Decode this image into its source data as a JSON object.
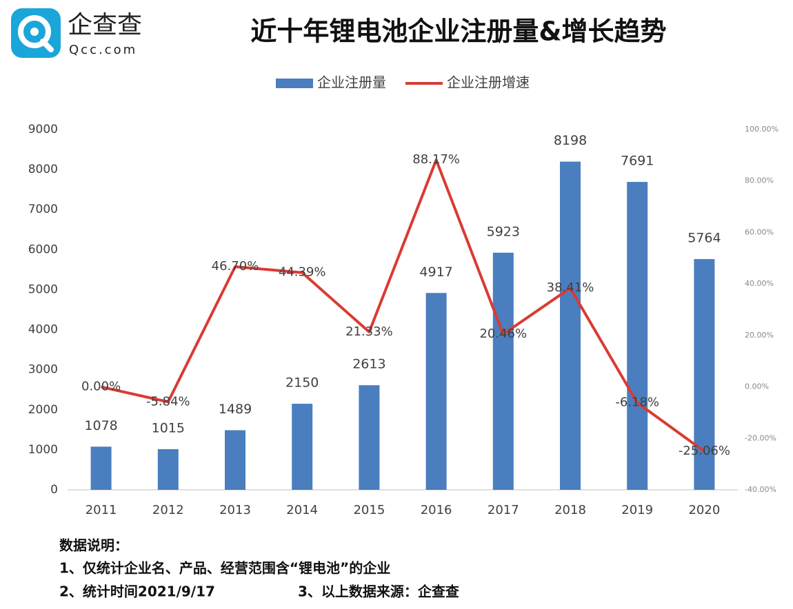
{
  "brand": {
    "name": "企查查",
    "site": "Qcc.com"
  },
  "chart_data": {
    "type": "bar-line",
    "title": "近十年锂电池企业注册量&增长趋势",
    "categories": [
      "2011",
      "2012",
      "2013",
      "2014",
      "2015",
      "2016",
      "2017",
      "2018",
      "2019",
      "2020"
    ],
    "series": [
      {
        "name": "企业注册量",
        "type": "bar",
        "color": "#4a7ebf",
        "values": [
          1078,
          1015,
          1489,
          2150,
          2613,
          4917,
          5923,
          8198,
          7691,
          5764
        ]
      },
      {
        "name": "企业注册增速",
        "type": "line",
        "axis": "y2",
        "color": "#d93b34",
        "values": [
          0.0,
          -5.84,
          46.7,
          44.39,
          21.33,
          88.17,
          20.46,
          38.41,
          -6.18,
          -25.06
        ],
        "value_labels": [
          "0.00%",
          "-5.84%",
          "46.70%",
          "44.39%",
          "21.33%",
          "88.17%",
          "20.46%",
          "38.41%",
          "-6.18%",
          "-25.06%"
        ]
      }
    ],
    "ylim": [
      0,
      9000
    ],
    "yticks": [
      0,
      1000,
      2000,
      3000,
      4000,
      5000,
      6000,
      7000,
      8000,
      9000
    ],
    "y2lim": [
      -40,
      100
    ],
    "y2ticks": [
      {
        "value": -40,
        "label": "-40.00%"
      },
      {
        "value": -20,
        "label": "-20.00%"
      },
      {
        "value": 0,
        "label": "0.00%"
      },
      {
        "value": 20,
        "label": "20.00%"
      },
      {
        "value": 40,
        "label": "40.00%"
      },
      {
        "value": 60,
        "label": "60.00%"
      },
      {
        "value": 80,
        "label": "80.00%"
      },
      {
        "value": 100,
        "label": "100.00%"
      }
    ],
    "grid": false,
    "legend": "top"
  },
  "notes": {
    "heading": "数据说明：",
    "items": [
      "1、仅统计企业名、产品、经营范围含“锂电池”的企业",
      "2、统计时间2021/9/17",
      "3、以上数据来源：企查查"
    ]
  }
}
